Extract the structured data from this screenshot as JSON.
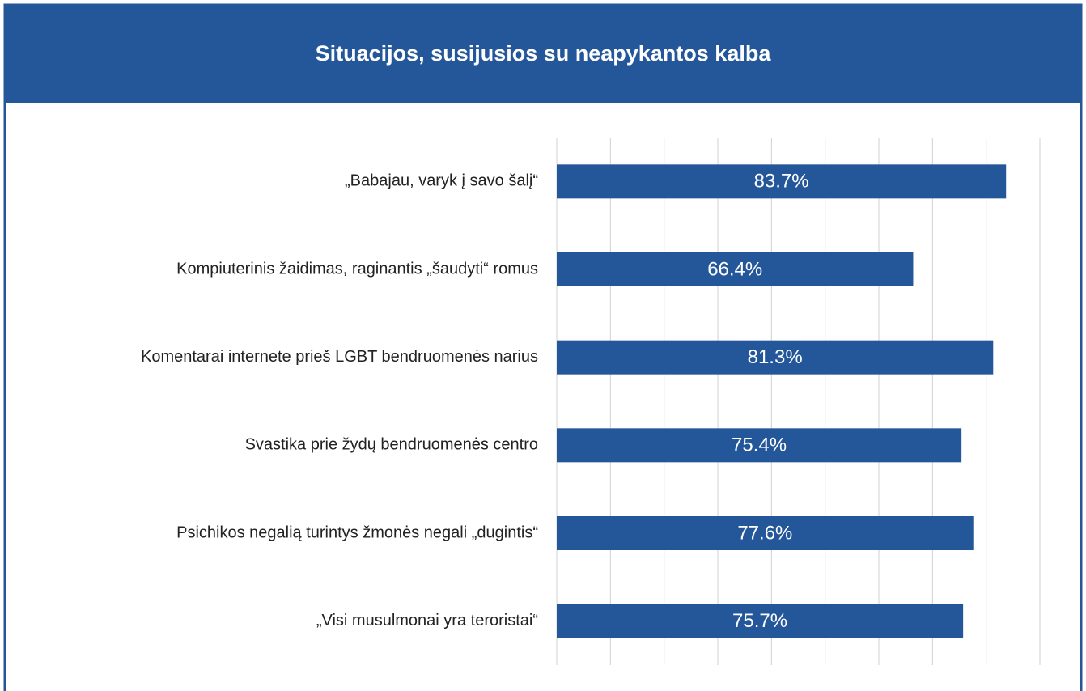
{
  "chart_data": {
    "type": "bar",
    "orientation": "horizontal",
    "title": "Situacijos, susijusios su neapykantos kalba",
    "categories": [
      "„Babajau, varyk į savo šalį“",
      "Kompiuterinis žaidimas, raginantis „šaudyti“ romus",
      "Komentarai internete prieš LGBT bendruomenės narius",
      "Svastika prie žydų bendruomenės centro",
      "Psichikos negalią turintys žmonės negali „dugintis“",
      "„Visi musulmonai yra teroristai“"
    ],
    "values": [
      83.7,
      66.4,
      81.3,
      75.4,
      77.6,
      75.7
    ],
    "value_labels": [
      "83.7%",
      "66.4%",
      "81.3%",
      "75.4%",
      "77.6%",
      "75.7%"
    ],
    "color": "#24579a",
    "xlim": [
      0,
      90
    ],
    "xticks": [
      0,
      10,
      20,
      30,
      40,
      50,
      60,
      70,
      80,
      90
    ],
    "grid": true
  }
}
